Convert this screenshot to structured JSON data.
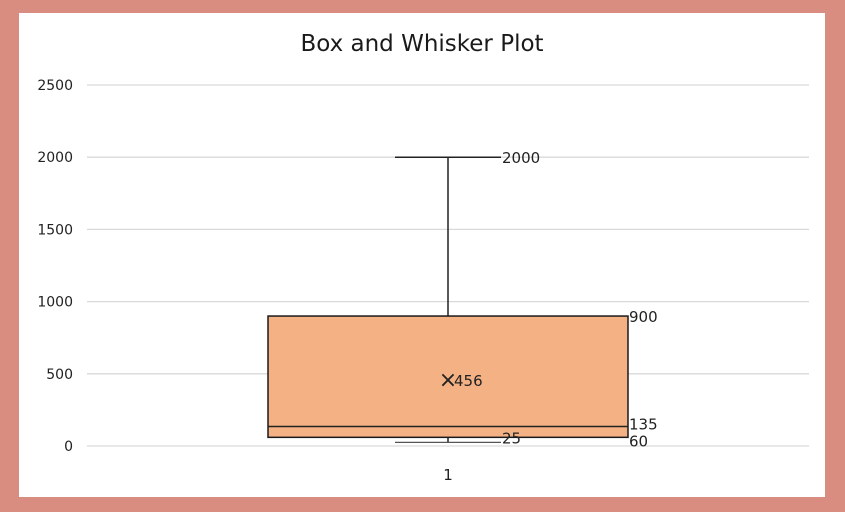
{
  "chart_data": {
    "type": "box",
    "title": "Box and Whisker Plot",
    "categories": [
      "1"
    ],
    "boxes": [
      {
        "category": "1",
        "min": 25,
        "q1": 60,
        "median": 135,
        "mean": 456,
        "q3": 900,
        "max": 2000
      }
    ],
    "data_labels": {
      "max": "2000",
      "q3": "900",
      "mean": "456",
      "median": "135",
      "q1": "60",
      "min": "25"
    },
    "mean_marker": "×",
    "ylim": [
      0,
      2500
    ],
    "yticks": [
      "0",
      "500",
      "1000",
      "1500",
      "2000",
      "2500"
    ],
    "grid": true,
    "legend": "none"
  },
  "colors": {
    "background": "#d98d80",
    "box_fill": "#f4b183",
    "box_stroke": "#1a1a1a",
    "gridline": "#d9d9d9"
  }
}
